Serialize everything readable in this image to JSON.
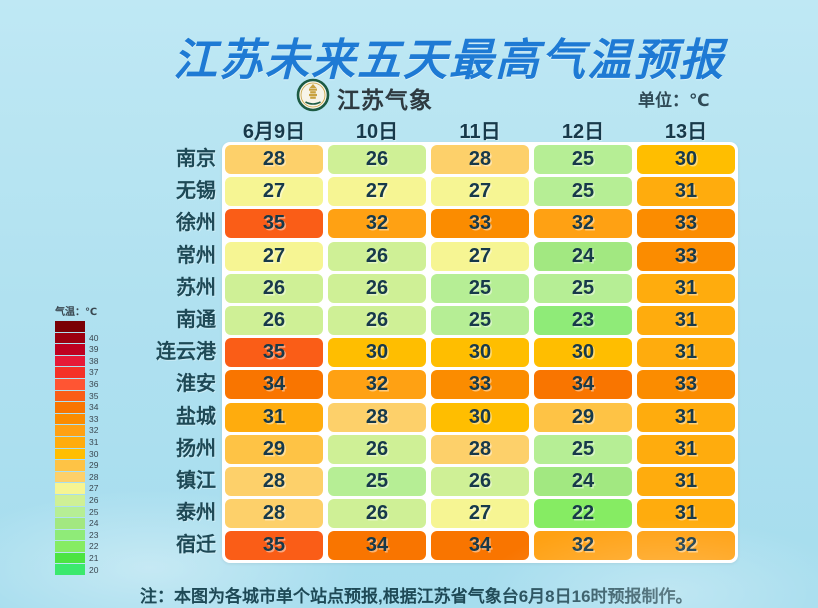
{
  "title": "江苏未来五天最高气温预报",
  "logo": {
    "text": "江苏气象"
  },
  "unit_label": "单位：℃",
  "footer_note": "注：本图为各城市单个站点预报,根据江苏省气象台6月8日16时预报制作。",
  "legend": {
    "title": "气温：℃",
    "entries": [
      {
        "label": "",
        "color": "#7A0005"
      },
      {
        "label": "40",
        "color": "#9C0010"
      },
      {
        "label": "39",
        "color": "#BE0020"
      },
      {
        "label": "38",
        "color": "#E61937"
      },
      {
        "label": "37",
        "color": "#F43127"
      },
      {
        "label": "36",
        "color": "#FF5533"
      },
      {
        "label": "35",
        "color": "#FA5D17"
      },
      {
        "label": "34",
        "color": "#F97500"
      },
      {
        "label": "33",
        "color": "#FB8C00"
      },
      {
        "label": "32",
        "color": "#FFA113"
      },
      {
        "label": "31",
        "color": "#FFAC0D"
      },
      {
        "label": "30",
        "color": "#FFBE00"
      },
      {
        "label": "29",
        "color": "#FEC345"
      },
      {
        "label": "28",
        "color": "#FDD06A"
      },
      {
        "label": "27",
        "color": "#F6F593"
      },
      {
        "label": "26",
        "color": "#CFF096"
      },
      {
        "label": "25",
        "color": "#B6EE95"
      },
      {
        "label": "24",
        "color": "#A2E881"
      },
      {
        "label": "23",
        "color": "#8FEB78"
      },
      {
        "label": "22",
        "color": "#86EC63"
      },
      {
        "label": "21",
        "color": "#4CE442"
      },
      {
        "label": "20",
        "color": "#3BE96D"
      }
    ]
  },
  "chart_data": {
    "type": "heatmap",
    "title": "江苏未来五天最高气温预报",
    "unit": "℃",
    "categories": [
      "6月9日",
      "10日",
      "11日",
      "12日",
      "13日"
    ],
    "rows": [
      {
        "city": "南京",
        "values": [
          28,
          26,
          28,
          25,
          30
        ]
      },
      {
        "city": "无锡",
        "values": [
          27,
          27,
          27,
          25,
          31
        ]
      },
      {
        "city": "徐州",
        "values": [
          35,
          32,
          33,
          32,
          33
        ]
      },
      {
        "city": "常州",
        "values": [
          27,
          26,
          27,
          24,
          33
        ]
      },
      {
        "city": "苏州",
        "values": [
          26,
          26,
          25,
          25,
          31
        ]
      },
      {
        "city": "南通",
        "values": [
          26,
          26,
          25,
          23,
          31
        ]
      },
      {
        "city": "连云港",
        "values": [
          35,
          30,
          30,
          30,
          31
        ]
      },
      {
        "city": "淮安",
        "values": [
          34,
          32,
          33,
          34,
          33
        ]
      },
      {
        "city": "盐城",
        "values": [
          31,
          28,
          30,
          29,
          31
        ]
      },
      {
        "city": "扬州",
        "values": [
          29,
          26,
          28,
          25,
          31
        ]
      },
      {
        "city": "镇江",
        "values": [
          28,
          25,
          26,
          24,
          31
        ]
      },
      {
        "city": "泰州",
        "values": [
          28,
          26,
          27,
          22,
          31
        ]
      },
      {
        "city": "宿迁",
        "values": [
          35,
          34,
          34,
          32,
          32
        ]
      }
    ],
    "legend_range": [
      20,
      40
    ],
    "temp_colors": {
      "20": "#3BE96D",
      "21": "#4CE442",
      "22": "#86EC63",
      "23": "#8FEB78",
      "24": "#A2E881",
      "25": "#B6EE95",
      "26": "#CFF096",
      "27": "#F6F593",
      "28": "#FDD06A",
      "29": "#FEC345",
      "30": "#FFBE00",
      "31": "#FFAC0D",
      "32": "#FFA113",
      "33": "#FB8C00",
      "34": "#F97500",
      "35": "#FA5D17",
      "36": "#FF5533",
      "37": "#F43127",
      "38": "#E61937",
      "39": "#BE0020",
      "40": "#9C0010"
    }
  }
}
